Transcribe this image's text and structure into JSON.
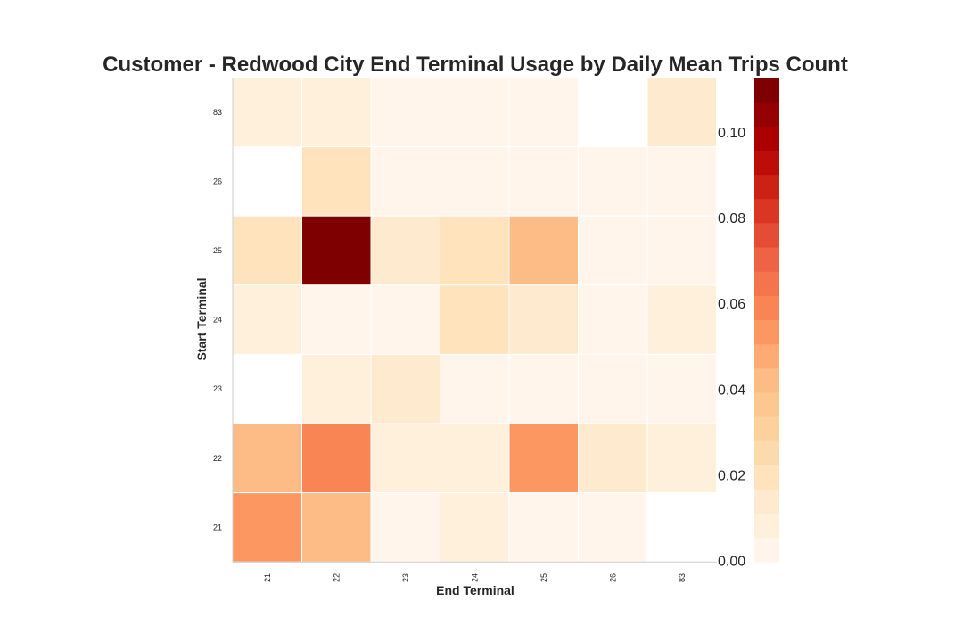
{
  "chart_data": {
    "type": "heatmap",
    "title": "Customer - Redwood City End Terminal Usage by Daily Mean Trips Count",
    "xlabel": "End Terminal",
    "ylabel": "Start Terminal",
    "x_categories": [
      "21",
      "22",
      "23",
      "24",
      "25",
      "26",
      "83"
    ],
    "y_categories": [
      "83",
      "26",
      "25",
      "24",
      "23",
      "22",
      "21"
    ],
    "values": [
      [
        0.008,
        0.008,
        0.005,
        0.005,
        0.005,
        null,
        0.012
      ],
      [
        null,
        0.018,
        0.005,
        0.005,
        0.005,
        0.005,
        0.005
      ],
      [
        0.02,
        0.113,
        0.012,
        0.018,
        0.043,
        0.004,
        0.004
      ],
      [
        0.008,
        0.004,
        0.004,
        0.02,
        0.012,
        0.004,
        0.01
      ],
      [
        null,
        0.008,
        0.016,
        0.004,
        0.004,
        0.004,
        0.004
      ],
      [
        0.04,
        0.06,
        0.008,
        0.008,
        0.053,
        0.012,
        0.01
      ],
      [
        0.053,
        0.04,
        0.004,
        0.008,
        0.004,
        0.004,
        null
      ]
    ],
    "colorbar": {
      "min": 0.0,
      "max": 0.113,
      "ticks": [
        "0.00",
        "0.02",
        "0.04",
        "0.06",
        "0.08",
        "0.10"
      ],
      "levels": 20,
      "colors": [
        "#fff5eb",
        "#fee8c8",
        "#fdd49e",
        "#fdbb84",
        "#fc8d59",
        "#ef6548",
        "#d7301f",
        "#b30000",
        "#7f0000"
      ]
    },
    "grid": false,
    "legend": "colorbar-right"
  }
}
